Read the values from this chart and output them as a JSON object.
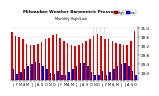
{
  "title": "Milwaukee Weather Barometric Pressure",
  "subtitle": "Monthly High/Low",
  "months": [
    "J",
    "F",
    "M",
    "A",
    "M",
    "J",
    "J",
    "A",
    "S",
    "O",
    "N",
    "D",
    "J",
    "F",
    "M",
    "A",
    "M",
    "J",
    "J",
    "A",
    "S",
    "O",
    "N",
    "D",
    "J",
    "F",
    "M",
    "A",
    "M",
    "J",
    "J",
    "A",
    "S",
    "O"
  ],
  "highs": [
    30.82,
    30.62,
    30.58,
    30.52,
    30.28,
    30.25,
    30.22,
    30.28,
    30.38,
    30.52,
    30.55,
    30.68,
    30.72,
    30.55,
    30.42,
    30.32,
    30.22,
    30.18,
    30.22,
    30.32,
    30.42,
    30.52,
    30.62,
    30.72,
    30.65,
    30.52,
    30.52,
    30.42,
    30.32,
    30.28,
    30.25,
    30.22,
    30.42,
    30.85
  ],
  "lows": [
    29.18,
    28.95,
    29.05,
    29.18,
    29.28,
    29.38,
    29.48,
    29.42,
    29.32,
    29.18,
    28.98,
    28.95,
    29.08,
    28.92,
    28.92,
    29.05,
    29.18,
    29.32,
    29.42,
    29.42,
    29.28,
    29.05,
    28.92,
    28.92,
    29.08,
    28.92,
    29.05,
    29.18,
    29.28,
    29.38,
    29.42,
    29.32,
    29.08,
    28.92
  ],
  "high_color": "#dd0000",
  "low_color": "#0000cc",
  "background_color": "#ffffff",
  "baseline": 28.7,
  "ylim_min": 28.7,
  "ylim_max": 31.1,
  "yticks": [
    29.0,
    29.4,
    29.8,
    30.2,
    30.6,
    31.0
  ],
  "ytick_labels": [
    "29.0",
    "29.4",
    "29.8",
    "30.2",
    "30.6",
    "31.0"
  ],
  "ylabel_fontsize": 3.0,
  "bar_width": 0.42
}
